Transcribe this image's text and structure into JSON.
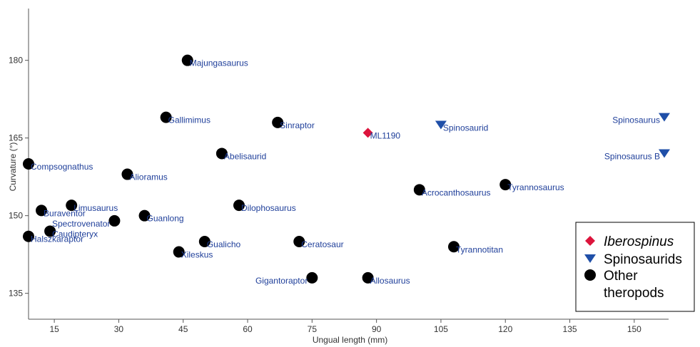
{
  "chart_data": {
    "type": "scatter",
    "xlabel": "Ungual length (mm)",
    "ylabel": "Curvature (°)",
    "xlim": [
      9,
      158
    ],
    "ylim": [
      130,
      190
    ],
    "xticks": [
      15,
      30,
      45,
      60,
      75,
      90,
      105,
      120,
      135,
      150
    ],
    "yticks": [
      135,
      150,
      165,
      180
    ],
    "grid": false,
    "legend_position": "bottom-right",
    "colors": {
      "iberospinus": "#dc143c",
      "spinosaurids": "#1f4fa8",
      "other": "#000000",
      "label": "#1f3f9a"
    },
    "series": [
      {
        "name": "Iberospinus",
        "italic": true,
        "marker": "diamond",
        "points": [
          {
            "label": "ML1190",
            "x": 88,
            "y": 166,
            "label_side": "right"
          }
        ]
      },
      {
        "name": "Spinosaurids",
        "italic": false,
        "marker": "triangle-down",
        "points": [
          {
            "label": "Spinosaurid",
            "x": 105,
            "y": 167.5,
            "label_side": "right"
          },
          {
            "label": "Spinosaurus",
            "x": 157,
            "y": 169,
            "label_side": "left"
          },
          {
            "label": "Spinosaurus B",
            "x": 157,
            "y": 162,
            "label_side": "left"
          }
        ]
      },
      {
        "name": "Other theropods",
        "name_lines": [
          "Other",
          "theropods"
        ],
        "italic": false,
        "marker": "circle",
        "points": [
          {
            "label": "Majungasaurus",
            "x": 46,
            "y": 180,
            "label_side": "right"
          },
          {
            "label": "Gallimimus",
            "x": 41,
            "y": 169,
            "label_side": "right"
          },
          {
            "label": "Sinraptor",
            "x": 67,
            "y": 168,
            "label_side": "right"
          },
          {
            "label": "Abelisaurid",
            "x": 54,
            "y": 162,
            "label_side": "right"
          },
          {
            "label": "Compsognathus",
            "x": 9,
            "y": 160,
            "label_side": "right"
          },
          {
            "label": "Alioramus",
            "x": 32,
            "y": 158,
            "label_side": "right"
          },
          {
            "label": "Acrocanthosaurus",
            "x": 100,
            "y": 155,
            "label_side": "right"
          },
          {
            "label": "Tyrannosaurus",
            "x": 120,
            "y": 156,
            "label_side": "right"
          },
          {
            "label": "Limusaurus",
            "x": 19,
            "y": 152,
            "label_side": "right"
          },
          {
            "label": "Dilophosaurus",
            "x": 58,
            "y": 152,
            "label_side": "right"
          },
          {
            "label": "Buraventor",
            "x": 12,
            "y": 151,
            "label_side": "right"
          },
          {
            "label": "Guanlong",
            "x": 36,
            "y": 150,
            "label_side": "right"
          },
          {
            "label": "Spectrovenator",
            "x": 29,
            "y": 149,
            "label_side": "left"
          },
          {
            "label": "Caudipteryx",
            "x": 14,
            "y": 147,
            "label_side": "right"
          },
          {
            "label": "Halszkaraptor",
            "x": 9,
            "y": 146,
            "label_side": "right"
          },
          {
            "label": "Gualicho",
            "x": 50,
            "y": 145,
            "label_side": "right"
          },
          {
            "label": "Ceratosaur",
            "x": 72,
            "y": 145,
            "label_side": "right"
          },
          {
            "label": "Tyrannotitan",
            "x": 108,
            "y": 144,
            "label_side": "right"
          },
          {
            "label": "Xileskus",
            "x": 44,
            "y": 143,
            "label_side": "right"
          },
          {
            "label": "Gigantoraptor",
            "x": 75,
            "y": 138,
            "label_side": "left"
          },
          {
            "label": "Allosaurus",
            "x": 88,
            "y": 138,
            "label_side": "right"
          }
        ]
      }
    ]
  }
}
